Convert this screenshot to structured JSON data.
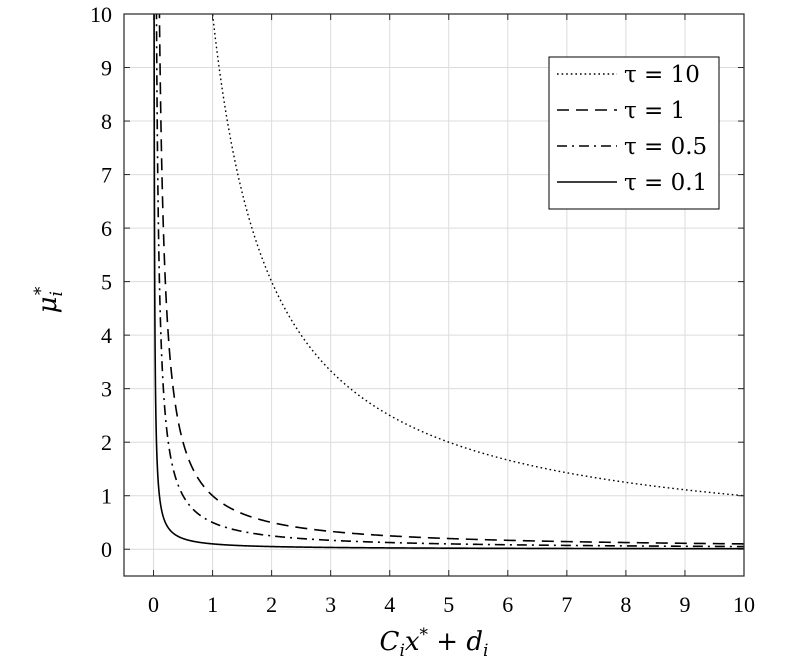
{
  "chart_data": {
    "type": "line",
    "xlabel": "C_i x^* + d_i",
    "ylabel": "μ_i^*",
    "xlim": [
      -0.5,
      10
    ],
    "ylim": [
      -0.5,
      10
    ],
    "xticks": [
      "0",
      "1",
      "2",
      "3",
      "4",
      "5",
      "6",
      "7",
      "8",
      "9",
      "10"
    ],
    "yticks": [
      "0",
      "1",
      "2",
      "3",
      "4",
      "5",
      "6",
      "7",
      "8",
      "9",
      "10"
    ],
    "grid": true,
    "legend_position": "top-right",
    "series": [
      {
        "name": "τ = 10",
        "tau": 10,
        "style": "dotted",
        "x": [
          1,
          1.25,
          1.5,
          2,
          2.5,
          3,
          4,
          5,
          6,
          7,
          8,
          9,
          10
        ],
        "y": [
          10,
          8,
          6.67,
          5,
          4,
          3.33,
          2.5,
          2,
          1.67,
          1.43,
          1.25,
          1.11,
          1
        ]
      },
      {
        "name": "τ = 1",
        "tau": 1,
        "style": "dashed",
        "x": [
          0.1,
          0.15,
          0.2,
          0.3,
          0.5,
          0.75,
          1,
          2,
          3,
          4,
          5,
          6,
          7,
          8,
          9,
          10
        ],
        "y": [
          10,
          6.67,
          5,
          3.33,
          2,
          1.33,
          1,
          0.5,
          0.33,
          0.25,
          0.2,
          0.17,
          0.14,
          0.125,
          0.11,
          0.1
        ]
      },
      {
        "name": "τ = 0.5",
        "tau": 0.5,
        "style": "dashdot",
        "x": [
          0.05,
          0.1,
          0.15,
          0.2,
          0.3,
          0.5,
          0.75,
          1,
          2,
          3,
          4,
          5,
          6,
          7,
          8,
          9,
          10
        ],
        "y": [
          10,
          5,
          3.33,
          2.5,
          1.67,
          1,
          0.67,
          0.5,
          0.25,
          0.17,
          0.125,
          0.1,
          0.083,
          0.071,
          0.0625,
          0.056,
          0.05
        ]
      },
      {
        "name": "τ = 0.1",
        "tau": 0.1,
        "style": "solid",
        "x": [
          0.01,
          0.02,
          0.03,
          0.05,
          0.1,
          0.2,
          0.3,
          0.5,
          1,
          2,
          3,
          5,
          10
        ],
        "y": [
          10,
          5,
          3.33,
          2,
          1,
          0.5,
          0.33,
          0.2,
          0.1,
          0.05,
          0.033,
          0.02,
          0.01
        ]
      }
    ]
  }
}
